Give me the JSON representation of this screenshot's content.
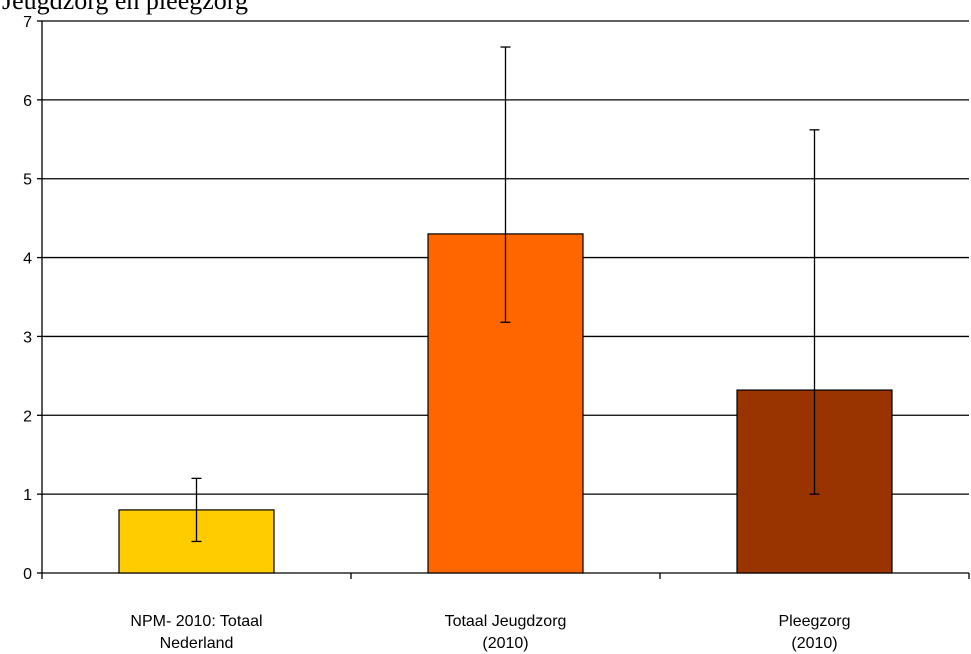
{
  "chart_data": {
    "type": "bar",
    "title": "Jeugdzorg en pleegzorg",
    "categories": [
      [
        "NPM- 2010: Totaal",
        "Nederland"
      ],
      [
        "Totaal Jeugdzorg",
        "(2010)"
      ],
      [
        "Pleegzorg",
        "(2010)"
      ]
    ],
    "values": [
      0.8,
      4.3,
      2.32
    ],
    "error_low": [
      0.4,
      3.18,
      1.0
    ],
    "error_high": [
      1.2,
      6.67,
      5.62
    ],
    "colors": [
      "#FFCC00",
      "#FF6600",
      "#993300"
    ],
    "ylim": [
      0,
      7
    ],
    "yticks": [
      0,
      1,
      2,
      3,
      4,
      5,
      6,
      7
    ],
    "grid": true,
    "xlabel": "",
    "ylabel": ""
  }
}
